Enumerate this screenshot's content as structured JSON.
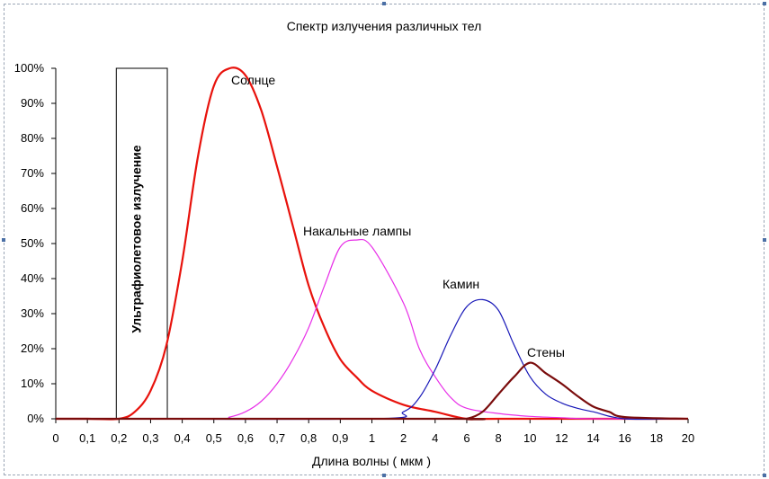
{
  "chart_data": {
    "type": "line",
    "title": "Спектр излучения различных тел",
    "xlabel": "Длина волны ( мкм )",
    "ylabel": "",
    "x_categories": [
      "0",
      "0,1",
      "0,2",
      "0,3",
      "0,4",
      "0,5",
      "0,6",
      "0,7",
      "0,8",
      "0,9",
      "1",
      "2",
      "4",
      "6",
      "8",
      "10",
      "12",
      "14",
      "16",
      "18",
      "20"
    ],
    "y_ticks": [
      "0%",
      "10%",
      "20%",
      "30%",
      "40%",
      "50%",
      "60%",
      "70%",
      "80%",
      "90%",
      "100%"
    ],
    "ylim": [
      0,
      100
    ],
    "grid": false,
    "legend": "none",
    "uv_band": {
      "label": "Ультрафиолетовое излучение",
      "from": "0,2",
      "to": "0,35"
    },
    "series": [
      {
        "name": "Солнце",
        "color": "#e8120c",
        "width": 2.2,
        "points": [
          [
            0.0,
            0
          ],
          [
            0.1,
            0
          ],
          [
            0.2,
            0
          ],
          [
            0.25,
            2
          ],
          [
            0.3,
            8
          ],
          [
            0.35,
            21
          ],
          [
            0.4,
            45
          ],
          [
            0.45,
            75
          ],
          [
            0.5,
            95
          ],
          [
            0.55,
            100
          ],
          [
            0.6,
            98
          ],
          [
            0.65,
            88
          ],
          [
            0.7,
            72
          ],
          [
            0.75,
            55
          ],
          [
            0.8,
            38
          ],
          [
            0.85,
            26
          ],
          [
            0.9,
            17
          ],
          [
            0.95,
            12
          ],
          [
            1.0,
            8
          ],
          [
            2,
            4
          ],
          [
            4,
            2
          ],
          [
            6,
            0
          ],
          [
            8,
            0
          ],
          [
            20,
            0
          ]
        ]
      },
      {
        "name": "Накальные лампы",
        "color": "#e830e8",
        "width": 1.2,
        "points": [
          [
            0.0,
            0
          ],
          [
            0.5,
            0
          ],
          [
            0.55,
            0.5
          ],
          [
            0.6,
            2
          ],
          [
            0.65,
            5
          ],
          [
            0.7,
            10
          ],
          [
            0.75,
            17
          ],
          [
            0.8,
            26
          ],
          [
            0.85,
            38
          ],
          [
            0.9,
            49
          ],
          [
            0.95,
            51
          ],
          [
            1.0,
            49
          ],
          [
            2,
            33
          ],
          [
            3,
            20
          ],
          [
            4,
            12
          ],
          [
            5,
            6
          ],
          [
            6,
            3
          ],
          [
            8,
            1.5
          ],
          [
            10,
            0.7
          ],
          [
            12,
            0.3
          ],
          [
            14,
            0
          ],
          [
            20,
            0
          ]
        ]
      },
      {
        "name": "Камин",
        "color": "#1818b8",
        "width": 1.2,
        "points": [
          [
            0.0,
            0
          ],
          [
            1.0,
            0
          ],
          [
            2,
            2
          ],
          [
            3,
            6
          ],
          [
            4,
            14
          ],
          [
            5,
            24
          ],
          [
            6,
            32
          ],
          [
            7,
            34
          ],
          [
            8,
            31
          ],
          [
            9,
            21
          ],
          [
            10,
            12
          ],
          [
            11,
            7
          ],
          [
            12,
            4.5
          ],
          [
            13,
            3
          ],
          [
            14,
            2
          ],
          [
            16,
            0
          ],
          [
            20,
            0
          ]
        ]
      },
      {
        "name": "Стены",
        "color": "#7a0c0c",
        "width": 2.2,
        "points": [
          [
            0.0,
            0
          ],
          [
            5,
            0
          ],
          [
            6,
            0
          ],
          [
            7,
            2
          ],
          [
            8,
            7
          ],
          [
            9,
            12
          ],
          [
            10,
            16
          ],
          [
            11,
            13
          ],
          [
            12,
            10
          ],
          [
            13,
            6.5
          ],
          [
            14,
            3.5
          ],
          [
            15,
            2
          ],
          [
            16,
            0.5
          ],
          [
            20,
            0
          ]
        ]
      }
    ],
    "annotations": [
      {
        "text": "Солнце"
      },
      {
        "text": "Накальные лампы"
      },
      {
        "text": "Камин"
      },
      {
        "text": "Стены"
      }
    ]
  }
}
